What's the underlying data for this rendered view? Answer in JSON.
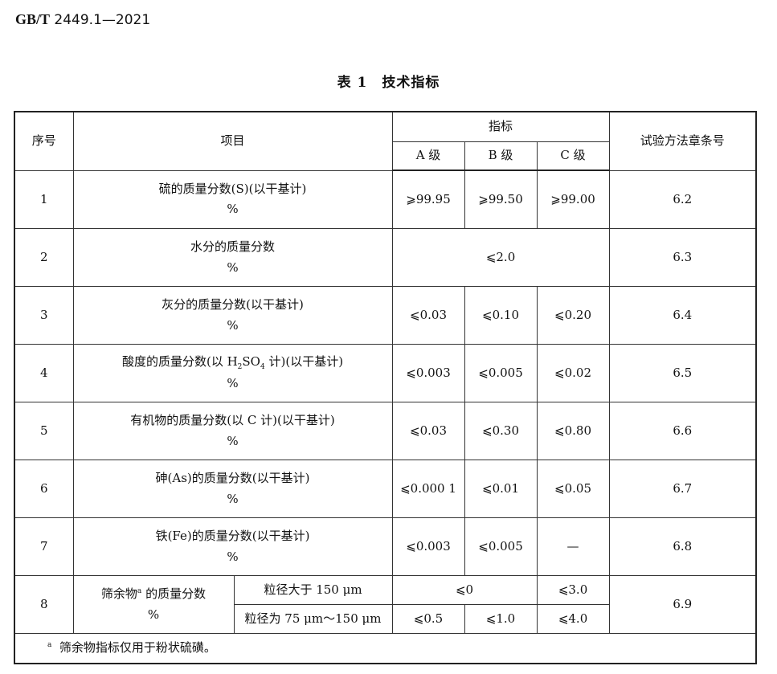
{
  "header": {
    "standard_prefix": "GB/T",
    "standard_number": "2449.1—2021"
  },
  "table_caption": "表 1　技术指标",
  "table": {
    "headers": {
      "index": "序号",
      "item": "项目",
      "indicator": "指标",
      "grade_a": "A 级",
      "grade_b": "B 级",
      "grade_c": "C 级",
      "method": "试验方法章条号"
    },
    "unit": "%",
    "rows": [
      {
        "index": "1",
        "item": "硫的质量分数(S)(以干基计)",
        "a": "⩾99.95",
        "b": "⩾99.50",
        "c": "⩾99.00",
        "method": "6.2"
      },
      {
        "index": "2",
        "item": "水分的质量分数",
        "abc": "⩽2.0",
        "method": "6.3"
      },
      {
        "index": "3",
        "item": "灰分的质量分数(以干基计)",
        "a": "⩽0.03",
        "b": "⩽0.10",
        "c": "⩽0.20",
        "method": "6.4"
      },
      {
        "index": "4",
        "item_parts": [
          "酸度的质量分数(以 H",
          "2",
          "SO",
          "4",
          " 计)(以干基计)"
        ],
        "a": "⩽0.003",
        "b": "⩽0.005",
        "c": "⩽0.02",
        "method": "6.5"
      },
      {
        "index": "5",
        "item": "有机物的质量分数(以 C 计)(以干基计)",
        "a": "⩽0.03",
        "b": "⩽0.30",
        "c": "⩽0.80",
        "method": "6.6"
      },
      {
        "index": "6",
        "item": "砷(As)的质量分数(以干基计)",
        "a": "⩽0.000 1",
        "b": "⩽0.01",
        "c": "⩽0.05",
        "method": "6.7"
      },
      {
        "index": "7",
        "item": "铁(Fe)的质量分数(以干基计)",
        "a": "⩽0.003",
        "b": "⩽0.005",
        "c": "—",
        "method": "6.8"
      },
      {
        "index": "8",
        "item": "筛余物",
        "item_note": "a",
        "item_rest": " 的质量分数",
        "method": "6.9",
        "sub": [
          {
            "label": "粒径大于 150 μm",
            "ab": "⩽0",
            "c": "⩽3.0"
          },
          {
            "label": "粒径为 75 μm～150 μm",
            "a": "⩽0.5",
            "b": "⩽1.0",
            "c": "⩽4.0"
          }
        ]
      }
    ],
    "footnote": {
      "mark": "a",
      "text": "筛余物指标仅用于粉状硫磺。"
    }
  }
}
